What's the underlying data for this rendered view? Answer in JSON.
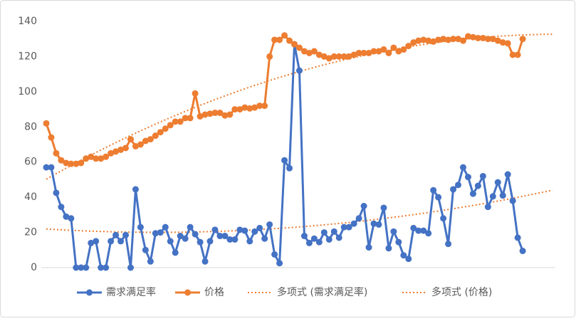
{
  "chart_data": {
    "type": "line",
    "categories_count_note_free": null,
    "ylim": [
      0,
      140
    ],
    "yticks": [
      0,
      20,
      40,
      60,
      80,
      100,
      120,
      140
    ],
    "grid": false,
    "series": [
      {
        "name": "需求满足率",
        "color": "#4472c4",
        "trendline_label": "多项式 (需求满足率)",
        "values": [
          57,
          57,
          42.5,
          34.5,
          29,
          28,
          0,
          0,
          0,
          14,
          15,
          0,
          0,
          15,
          18.5,
          15,
          18.5,
          0,
          44.5,
          23,
          10,
          3.5,
          19.5,
          20,
          23,
          15,
          8.5,
          18,
          16.5,
          23,
          19,
          14.5,
          3.5,
          15,
          21.5,
          18,
          18,
          16,
          16,
          21.5,
          21,
          15,
          20.5,
          22.5,
          16.5,
          24.5,
          7.5,
          2.5,
          61,
          56.5,
          127,
          112,
          18,
          14,
          16.5,
          14.5,
          20,
          16,
          20.5,
          17,
          23,
          23,
          25,
          28,
          35,
          11.5,
          25,
          24.5,
          34,
          11,
          20.5,
          14.5,
          7,
          5,
          22.5,
          21,
          21,
          19.5,
          44,
          40,
          28,
          13.5,
          44.5,
          47,
          57,
          51.5,
          42,
          46.5,
          52,
          34.5,
          40.5,
          48.5,
          41,
          53,
          38,
          17,
          9.5
        ]
      },
      {
        "name": "价格",
        "color": "#ed7d31",
        "trendline_label": "多项式 (价格)",
        "values": [
          82,
          74,
          65,
          61,
          59.5,
          59,
          59,
          59.5,
          62,
          63,
          62,
          62,
          63,
          65,
          66,
          67,
          68,
          73,
          69,
          70,
          72,
          73,
          75,
          77,
          79,
          81,
          83,
          83,
          85,
          85,
          99,
          86,
          87,
          87.5,
          88,
          88,
          86.5,
          87,
          90,
          90,
          91,
          90.5,
          91,
          92,
          92,
          120,
          129.5,
          129.5,
          132,
          129,
          127,
          125,
          123,
          122,
          123,
          121,
          120,
          119,
          120,
          120,
          120,
          120,
          121,
          122,
          122,
          122,
          123,
          123,
          124,
          122,
          125,
          123,
          124,
          126,
          128,
          129,
          129.5,
          129,
          128.5,
          129.5,
          130,
          129.5,
          130,
          130,
          129,
          131.5,
          131,
          130.5,
          130.5,
          130,
          130,
          129,
          128,
          127.5,
          121,
          121,
          130
        ]
      }
    ]
  }
}
